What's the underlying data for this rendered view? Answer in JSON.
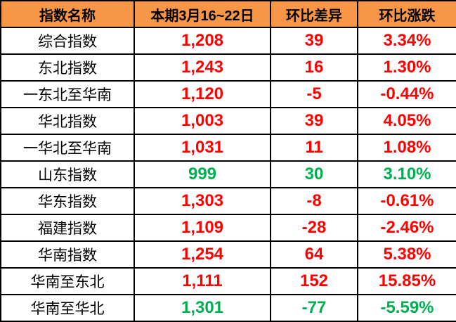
{
  "colors": {
    "header_bg": "#F79646",
    "red": "#FF0000",
    "green": "#00B050",
    "border": "#000000"
  },
  "chart_data": {
    "type": "table",
    "title": "",
    "columns": [
      "指数名称",
      "本期3月16~22日",
      "环比差异",
      "环比涨跌"
    ],
    "rows": [
      {
        "name": "综合指数",
        "current": "1,208",
        "diff": "39",
        "change": "3.34%",
        "color": "red"
      },
      {
        "name": "东北指数",
        "current": "1,243",
        "diff": "16",
        "change": "1.30%",
        "color": "red"
      },
      {
        "name": "一东北至华南",
        "current": "1,120",
        "diff": "-5",
        "change": "-0.44%",
        "color": "red"
      },
      {
        "name": "华北指数",
        "current": "1,003",
        "diff": "39",
        "change": "4.05%",
        "color": "red"
      },
      {
        "name": "一华北至华南",
        "current": "1,031",
        "diff": "11",
        "change": "1.08%",
        "color": "red"
      },
      {
        "name": "山东指数",
        "current": "999",
        "diff": "30",
        "change": "3.10%",
        "color": "green"
      },
      {
        "name": "华东指数",
        "current": "1,303",
        "diff": "-8",
        "change": "-0.61%",
        "color": "red"
      },
      {
        "name": "福建指数",
        "current": "1,109",
        "diff": "-28",
        "change": "-2.46%",
        "color": "red"
      },
      {
        "name": "华南指数",
        "current": "1,254",
        "diff": "64",
        "change": "5.38%",
        "color": "red"
      },
      {
        "name": "华南至东北",
        "current": "1,111",
        "diff": "152",
        "change": "15.85%",
        "color": "red"
      },
      {
        "name": "华南至华北",
        "current": "1,301",
        "diff": "-77",
        "change": "-5.59%",
        "color": "green"
      }
    ]
  }
}
